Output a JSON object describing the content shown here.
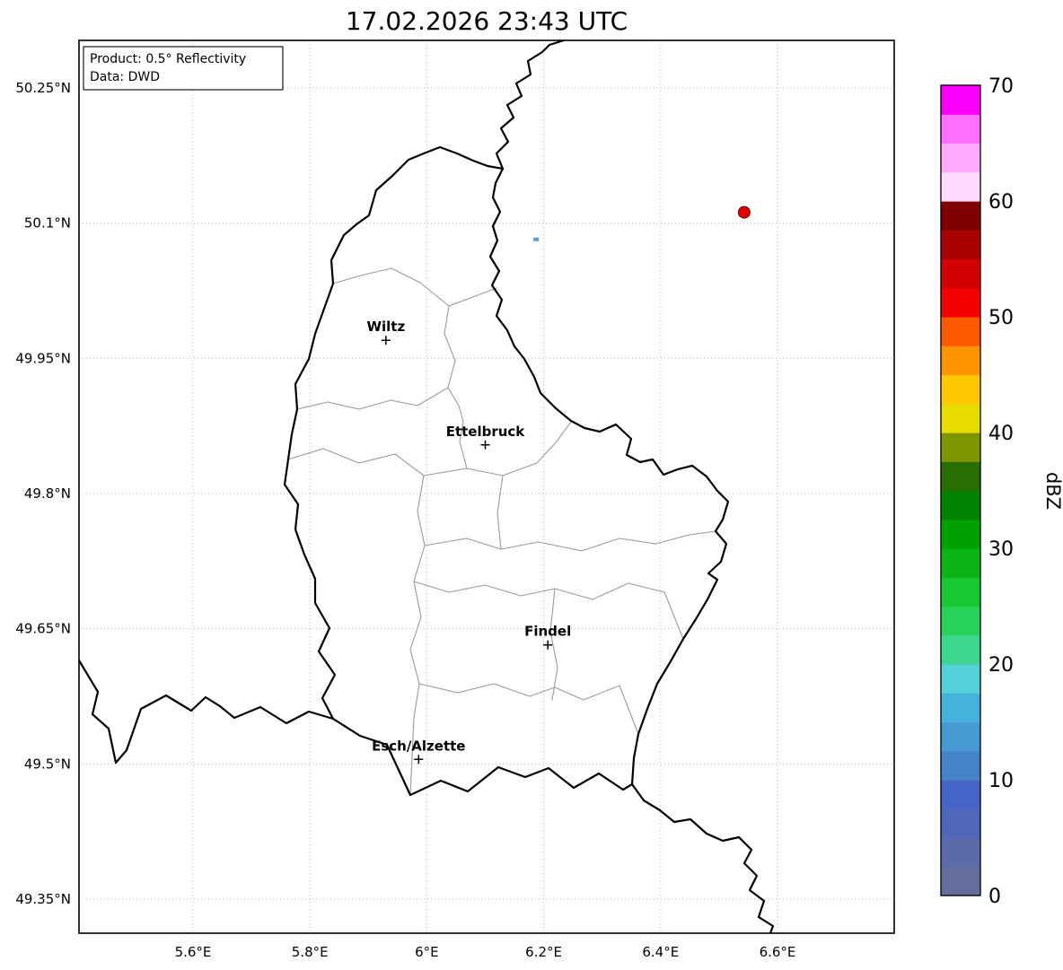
{
  "title": "17.02.2026 23:43 UTC",
  "info_box": {
    "line1": "Product: 0.5° Reflectivity",
    "line2": "Data: DWD"
  },
  "axes": {
    "lat_ticks": [
      {
        "label": "50.25°N",
        "value": 50.25
      },
      {
        "label": "50.1°N",
        "value": 50.1
      },
      {
        "label": "49.95°N",
        "value": 49.95
      },
      {
        "label": "49.8°N",
        "value": 49.8
      },
      {
        "label": "49.65°N",
        "value": 49.65
      },
      {
        "label": "49.5°N",
        "value": 49.5
      },
      {
        "label": "49.35°N",
        "value": 49.35
      }
    ],
    "lon_ticks": [
      {
        "label": "5.6°E",
        "value": 5.6
      },
      {
        "label": "5.8°E",
        "value": 5.8
      },
      {
        "label": "6°E",
        "value": 6.0
      },
      {
        "label": "6.2°E",
        "value": 6.2
      },
      {
        "label": "6.4°E",
        "value": 6.4
      },
      {
        "label": "6.6°E",
        "value": 6.6
      }
    ]
  },
  "cities": [
    {
      "name": "Wiltz",
      "lon": 5.93,
      "lat": 49.97
    },
    {
      "name": "Ettelbruck",
      "lon": 6.1,
      "lat": 49.854
    },
    {
      "name": "Findel",
      "lon": 6.207,
      "lat": 49.632
    },
    {
      "name": "Esch/Alzette",
      "lon": 5.986,
      "lat": 49.505
    }
  ],
  "echoes": [
    {
      "type": "dot",
      "lon": 6.543,
      "lat": 50.112,
      "approx_dbz": 50,
      "color": "#e60000",
      "edge": "#5a0000"
    },
    {
      "type": "pixel",
      "lon": 6.187,
      "lat": 50.082,
      "approx_dbz": 10,
      "color": "#5a9bd4",
      "edge": "none"
    }
  ],
  "colorbar": {
    "label": "dBZ",
    "min": 0,
    "max": 70,
    "step": 2.5,
    "ticks": [
      {
        "label": "0",
        "value": 0
      },
      {
        "label": "10",
        "value": 10
      },
      {
        "label": "20",
        "value": 20
      },
      {
        "label": "30",
        "value": 30
      },
      {
        "label": "40",
        "value": 40
      },
      {
        "label": "50",
        "value": 50
      },
      {
        "label": "60",
        "value": 60
      },
      {
        "label": "70",
        "value": 70
      }
    ],
    "colors": [
      "#646e9c",
      "#5a6aaa",
      "#5066b8",
      "#4663c6",
      "#4682c8",
      "#4699d2",
      "#46b1dc",
      "#55cfd8",
      "#3cd68c",
      "#28d25a",
      "#16c832",
      "#0ab414",
      "#00a000",
      "#008200",
      "#286e00",
      "#7d9600",
      "#e6dc00",
      "#ffc800",
      "#ff9600",
      "#ff5a00",
      "#f50000",
      "#d20000",
      "#aa0000",
      "#800000",
      "#ffdcff",
      "#ffaaff",
      "#ff6eff",
      "#fa00fa"
    ]
  },
  "chart_data": {
    "type": "map",
    "title": "17.02.2026 23:43 UTC",
    "product": "0.5° Reflectivity",
    "data_source": "DWD",
    "region_shown": "Luxembourg and surrounding borders",
    "lon_range": [
      5.405,
      6.8
    ],
    "lat_range": [
      49.312,
      50.303
    ],
    "grid": "dotted",
    "colorbar": {
      "label": "dBZ",
      "range": [
        0,
        70
      ],
      "step": 2.5,
      "orientation": "vertical",
      "position": "right"
    },
    "cities": [
      "Wiltz",
      "Ettelbruck",
      "Findel",
      "Esch/Alzette"
    ],
    "echo_points": [
      {
        "lon": 6.543,
        "lat": 50.112,
        "dbz_approx": 50,
        "shape": "dot"
      },
      {
        "lon": 6.187,
        "lat": 50.082,
        "dbz_approx": 10,
        "shape": "pixel"
      }
    ]
  }
}
